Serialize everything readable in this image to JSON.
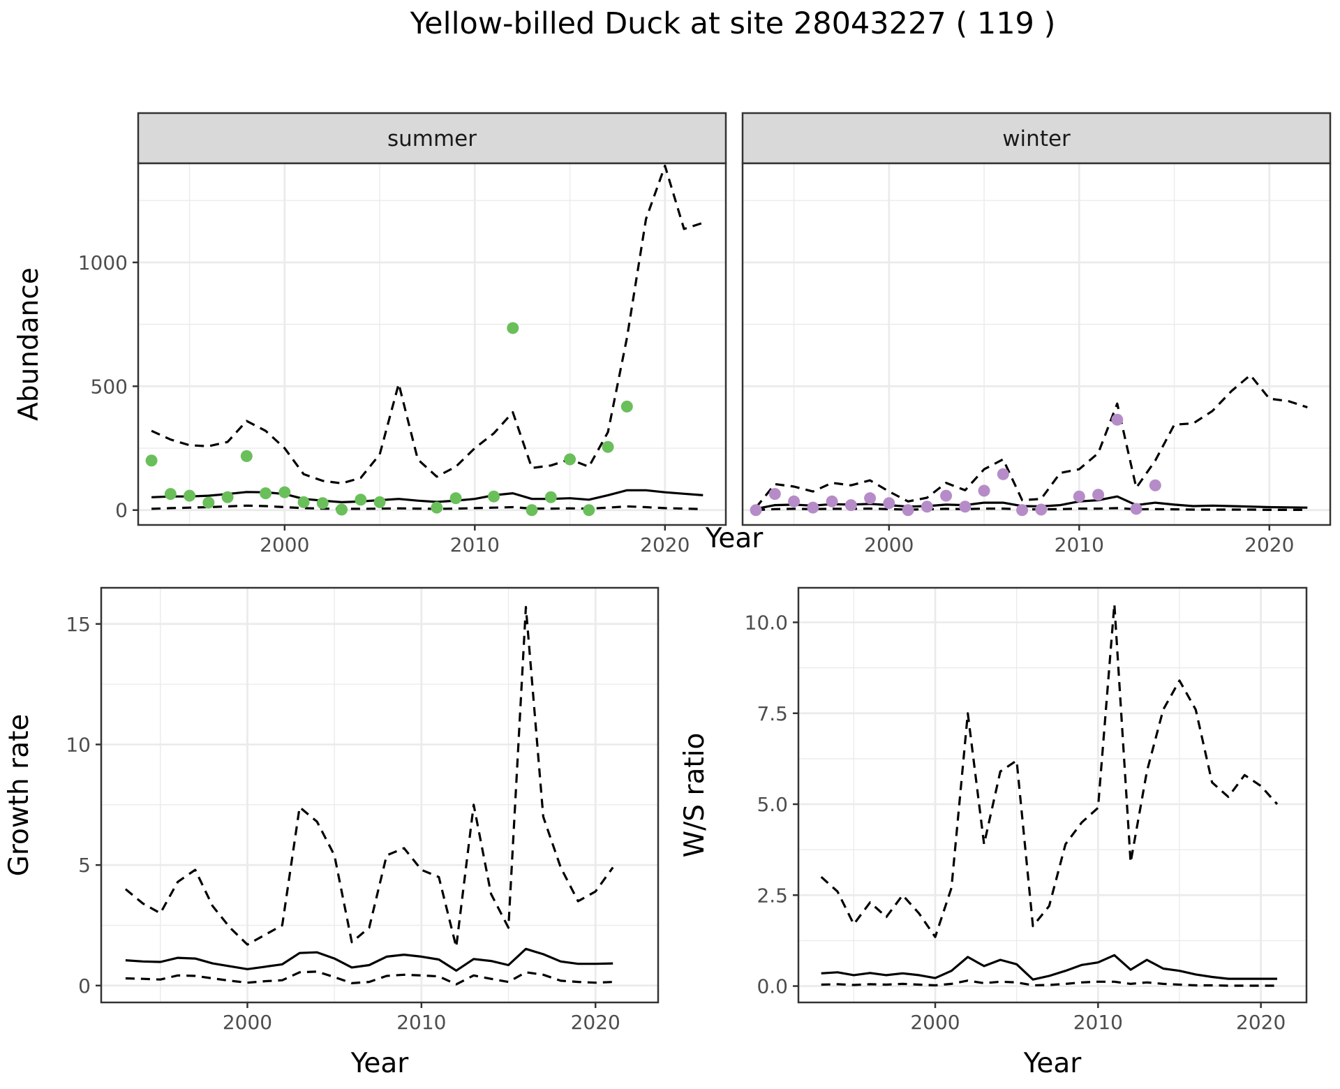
{
  "title": "Yellow-billed Duck at site 28043227 ( 119 )",
  "colors": {
    "summer_points": "#6abf5b",
    "winter_points": "#b68cc8",
    "lines": "#000000",
    "strip_fill": "#d9d9d9",
    "grid": "#ebebeb"
  },
  "chart_data": [
    {
      "type": "line",
      "panel": "summer",
      "strip_label": "summer",
      "xlabel": "Year",
      "ylabel": "Abundance",
      "xlim": [
        1992.3,
        2023.2
      ],
      "ylim": [
        -60,
        1400
      ],
      "x_ticks": [
        2000,
        2010,
        2020
      ],
      "y_ticks": [
        0,
        500,
        1000
      ],
      "grid": true,
      "series": [
        {
          "style": "solid",
          "x": [
            1993,
            1994,
            1995,
            1996,
            1997,
            1998,
            1999,
            2000,
            2001,
            2002,
            2003,
            2004,
            2005,
            2006,
            2007,
            2008,
            2009,
            2010,
            2011,
            2012,
            2013,
            2014,
            2015,
            2016,
            2017,
            2018,
            2019,
            2020,
            2021,
            2022
          ],
          "values": [
            52,
            55,
            55,
            58,
            65,
            73,
            72,
            65,
            45,
            38,
            32,
            35,
            40,
            45,
            38,
            33,
            38,
            45,
            60,
            68,
            45,
            45,
            48,
            42,
            60,
            80,
            80,
            72,
            66,
            60
          ]
        },
        {
          "style": "dashed",
          "x": [
            1993,
            1994,
            1995,
            1996,
            1997,
            1998,
            1999,
            2000,
            2001,
            2002,
            2003,
            2004,
            2005,
            2006,
            2007,
            2008,
            2009,
            2010,
            2011,
            2012,
            2013,
            2014,
            2015,
            2016,
            2017,
            2018,
            2019,
            2020,
            2021,
            2022
          ],
          "values": [
            320,
            285,
            262,
            258,
            275,
            360,
            320,
            250,
            145,
            118,
            108,
            130,
            225,
            510,
            205,
            135,
            175,
            250,
            310,
            395,
            170,
            180,
            205,
            175,
            315,
            695,
            1175,
            1390,
            1135,
            1160
          ]
        },
        {
          "style": "dashed",
          "x": [
            1993,
            1994,
            1995,
            1996,
            1997,
            1998,
            1999,
            2000,
            2001,
            2002,
            2003,
            2004,
            2005,
            2006,
            2007,
            2008,
            2009,
            2010,
            2011,
            2012,
            2013,
            2014,
            2015,
            2016,
            2017,
            2018,
            2019,
            2020,
            2021,
            2022
          ],
          "values": [
            5,
            8,
            10,
            12,
            15,
            18,
            16,
            12,
            8,
            6,
            5,
            5,
            6,
            7,
            6,
            5,
            6,
            8,
            10,
            12,
            6,
            6,
            7,
            6,
            10,
            15,
            12,
            8,
            6,
            4
          ]
        },
        {
          "style": "points",
          "x": [
            1993,
            1994,
            1995,
            1996,
            1997,
            1998,
            1999,
            2000,
            2001,
            2002,
            2003,
            2004,
            2005,
            2008,
            2009,
            2011,
            2012,
            2013,
            2014,
            2015,
            2016,
            2017,
            2018
          ],
          "values": [
            200,
            65,
            58,
            30,
            52,
            218,
            68,
            72,
            32,
            28,
            2,
            42,
            32,
            10,
            48,
            55,
            735,
            0,
            52,
            205,
            0,
            255,
            418
          ]
        }
      ]
    },
    {
      "type": "line",
      "panel": "winter",
      "strip_label": "winter",
      "xlabel": "Year",
      "ylabel": "Abundance",
      "xlim": [
        1992.3,
        2023.2
      ],
      "ylim": [
        -60,
        1400
      ],
      "x_ticks": [
        2000,
        2010,
        2020
      ],
      "y_ticks": [
        0,
        500,
        1000
      ],
      "grid": true,
      "series": [
        {
          "style": "solid",
          "x": [
            1993,
            1994,
            1995,
            1996,
            1997,
            1998,
            1999,
            2000,
            2001,
            2002,
            2003,
            2004,
            2005,
            2006,
            2007,
            2008,
            2009,
            2010,
            2011,
            2012,
            2013,
            2014,
            2015,
            2016,
            2017,
            2018,
            2019,
            2020,
            2021,
            2022
          ],
          "values": [
            5,
            20,
            22,
            18,
            24,
            22,
            25,
            20,
            14,
            16,
            22,
            20,
            30,
            30,
            16,
            15,
            20,
            35,
            40,
            55,
            20,
            30,
            22,
            16,
            18,
            16,
            14,
            12,
            11,
            10
          ]
        },
        {
          "style": "dashed",
          "x": [
            1993,
            1994,
            1995,
            1996,
            1997,
            1998,
            1999,
            2000,
            2001,
            2002,
            2003,
            2004,
            2005,
            2006,
            2007,
            2008,
            2009,
            2010,
            2011,
            2012,
            2013,
            2014,
            2015,
            2016,
            2017,
            2018,
            2019,
            2020,
            2021,
            2022
          ],
          "values": [
            10,
            105,
            95,
            75,
            110,
            100,
            120,
            75,
            35,
            50,
            110,
            80,
            165,
            205,
            40,
            45,
            150,
            165,
            230,
            430,
            90,
            200,
            345,
            350,
            400,
            480,
            545,
            450,
            440,
            415
          ]
        },
        {
          "style": "dashed",
          "x": [
            1993,
            1994,
            1995,
            1996,
            1997,
            1998,
            1999,
            2000,
            2001,
            2002,
            2003,
            2004,
            2005,
            2006,
            2007,
            2008,
            2009,
            2010,
            2011,
            2012,
            2013,
            2014,
            2015,
            2016,
            2017,
            2018,
            2019,
            2020,
            2021,
            2022
          ],
          "values": [
            0,
            4,
            5,
            4,
            5,
            5,
            6,
            4,
            2,
            3,
            5,
            4,
            6,
            6,
            3,
            3,
            4,
            6,
            6,
            8,
            3,
            4,
            3,
            2,
            2,
            2,
            2,
            1,
            1,
            1
          ]
        },
        {
          "style": "points",
          "x": [
            1993,
            1994,
            1995,
            1996,
            1997,
            1998,
            1999,
            2000,
            2001,
            2002,
            2003,
            2004,
            2005,
            2006,
            2007,
            2008,
            2010,
            2011,
            2012,
            2013,
            2014
          ],
          "values": [
            0,
            65,
            35,
            10,
            35,
            20,
            48,
            28,
            0,
            14,
            58,
            14,
            78,
            145,
            0,
            2,
            55,
            62,
            365,
            5,
            100
          ]
        }
      ]
    },
    {
      "type": "line",
      "panel": "growth",
      "xlabel": "Year",
      "ylabel": "Growth rate",
      "xlim": [
        1991.6,
        2023.6
      ],
      "ylim": [
        -0.7,
        16.5
      ],
      "x_ticks": [
        2000,
        2010,
        2020
      ],
      "y_ticks": [
        0,
        5,
        10,
        15
      ],
      "grid": true,
      "series": [
        {
          "style": "solid",
          "x": [
            1993,
            1994,
            1995,
            1996,
            1997,
            1998,
            1999,
            2000,
            2001,
            2002,
            2003,
            2004,
            2005,
            2006,
            2007,
            2008,
            2009,
            2010,
            2011,
            2012,
            2013,
            2014,
            2015,
            2016,
            2017,
            2018,
            2019,
            2020,
            2021
          ],
          "values": [
            1.05,
            1.0,
            0.98,
            1.15,
            1.12,
            0.92,
            0.8,
            0.68,
            0.78,
            0.88,
            1.35,
            1.38,
            1.12,
            0.75,
            0.85,
            1.2,
            1.28,
            1.2,
            1.08,
            0.62,
            1.1,
            1.02,
            0.85,
            1.52,
            1.3,
            1.0,
            0.9,
            0.9,
            0.92
          ]
        },
        {
          "style": "dashed",
          "x": [
            1993,
            1994,
            1995,
            1996,
            1997,
            1998,
            1999,
            2000,
            2001,
            2002,
            2003,
            2004,
            2005,
            2006,
            2007,
            2008,
            2009,
            2010,
            2011,
            2012,
            2013,
            2014,
            2015,
            2016,
            2017,
            2018,
            2019,
            2020,
            2021
          ],
          "values": [
            4.0,
            3.4,
            3.0,
            4.3,
            4.8,
            3.3,
            2.4,
            1.7,
            2.1,
            2.5,
            7.4,
            6.8,
            5.4,
            1.8,
            2.4,
            5.4,
            5.7,
            4.8,
            4.5,
            1.6,
            7.5,
            3.8,
            2.4,
            15.7,
            7.0,
            4.9,
            3.5,
            3.9,
            4.9
          ]
        },
        {
          "style": "dashed",
          "x": [
            1993,
            1994,
            1995,
            1996,
            1997,
            1998,
            1999,
            2000,
            2001,
            2002,
            2003,
            2004,
            2005,
            2006,
            2007,
            2008,
            2009,
            2010,
            2011,
            2012,
            2013,
            2014,
            2015,
            2016,
            2017,
            2018,
            2019,
            2020,
            2021
          ],
          "values": [
            0.3,
            0.28,
            0.25,
            0.42,
            0.4,
            0.3,
            0.2,
            0.12,
            0.18,
            0.22,
            0.55,
            0.58,
            0.35,
            0.1,
            0.15,
            0.4,
            0.45,
            0.42,
            0.38,
            0.05,
            0.42,
            0.28,
            0.15,
            0.55,
            0.45,
            0.2,
            0.15,
            0.12,
            0.15
          ]
        }
      ]
    },
    {
      "type": "line",
      "panel": "ratio",
      "xlabel": "Year",
      "ylabel": "W/S ratio",
      "xlim": [
        1991.6,
        2022.8
      ],
      "ylim": [
        -0.45,
        10.95
      ],
      "x_ticks": [
        2000,
        2010,
        2020
      ],
      "y_ticks": [
        0,
        2.5,
        5,
        7.5,
        10
      ],
      "y_tick_labels": [
        "0.0",
        "2.5",
        "5.0",
        "7.5",
        "10.0"
      ],
      "grid": true,
      "series": [
        {
          "style": "solid",
          "x": [
            1993,
            1994,
            1995,
            1996,
            1997,
            1998,
            1999,
            2000,
            2001,
            2002,
            2003,
            2004,
            2005,
            2006,
            2007,
            2008,
            2009,
            2010,
            2011,
            2012,
            2013,
            2014,
            2015,
            2016,
            2017,
            2018,
            2019,
            2020,
            2021
          ],
          "values": [
            0.35,
            0.38,
            0.3,
            0.36,
            0.3,
            0.35,
            0.3,
            0.22,
            0.42,
            0.8,
            0.55,
            0.72,
            0.6,
            0.18,
            0.28,
            0.42,
            0.58,
            0.65,
            0.85,
            0.45,
            0.72,
            0.48,
            0.42,
            0.32,
            0.25,
            0.2,
            0.2,
            0.2,
            0.2
          ]
        },
        {
          "style": "dashed",
          "x": [
            1993,
            1994,
            1995,
            1996,
            1997,
            1998,
            1999,
            2000,
            2001,
            2002,
            2003,
            2004,
            2005,
            2006,
            2007,
            2008,
            2009,
            2010,
            2011,
            2012,
            2013,
            2014,
            2015,
            2016,
            2017,
            2018,
            2019,
            2020,
            2021
          ],
          "values": [
            3.0,
            2.6,
            1.7,
            2.3,
            1.9,
            2.5,
            2.0,
            1.35,
            2.7,
            7.5,
            3.9,
            5.9,
            6.2,
            1.65,
            2.2,
            3.9,
            4.5,
            4.9,
            10.5,
            3.4,
            5.9,
            7.6,
            8.4,
            7.6,
            5.6,
            5.2,
            5.8,
            5.5,
            5.0
          ]
        },
        {
          "style": "dashed",
          "x": [
            1993,
            1994,
            1995,
            1996,
            1997,
            1998,
            1999,
            2000,
            2001,
            2002,
            2003,
            2004,
            2005,
            2006,
            2007,
            2008,
            2009,
            2010,
            2011,
            2012,
            2013,
            2014,
            2015,
            2016,
            2017,
            2018,
            2019,
            2020,
            2021
          ],
          "values": [
            0.04,
            0.05,
            0.03,
            0.05,
            0.04,
            0.06,
            0.04,
            0.02,
            0.06,
            0.15,
            0.08,
            0.12,
            0.1,
            0.02,
            0.03,
            0.06,
            0.1,
            0.12,
            0.12,
            0.06,
            0.1,
            0.06,
            0.04,
            0.02,
            0.02,
            0.01,
            0.01,
            0.01,
            0.01
          ]
        }
      ]
    }
  ]
}
